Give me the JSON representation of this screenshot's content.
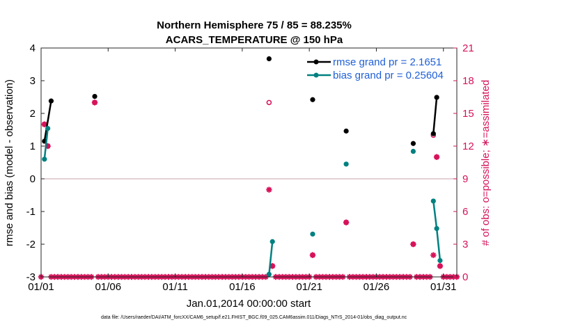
{
  "chart_data": {
    "type": "line",
    "title_line1": "Northern Hemisphere 75 / 85 = 88.235%",
    "title_line2": "ACARS_TEMPERATURE @ 150 hPa",
    "ylabel": "rmse and bias (model - observation)",
    "y2label": "# of obs: o=possible; ∗=assimilated",
    "xlabel": "Jan.01,2014 00:00:00 start",
    "footer": "data file: /Users/raeder/DAI/ATM_forcXX/CAM6_setup/f.e21.FHIST_BGC.f09_025.CAM6assim.011/Diags_NTrS_2014-01/obs_diag_output.nc",
    "xlim": [
      1,
      32
    ],
    "ylim": [
      -3,
      4
    ],
    "y2lim": [
      0,
      21
    ],
    "xticks": [
      1,
      6,
      11,
      16,
      21,
      26,
      31
    ],
    "xtick_labels": [
      "01/01",
      "01/06",
      "01/11",
      "01/16",
      "01/21",
      "01/26",
      "01/31"
    ],
    "yticks": [
      -3,
      -2,
      -1,
      0,
      1,
      2,
      3,
      4
    ],
    "ytick_labels": [
      "-3",
      "-2",
      "-1",
      "0",
      "1",
      "2",
      "3",
      "4"
    ],
    "y2ticks": [
      0,
      3,
      6,
      9,
      12,
      15,
      18,
      21
    ],
    "y2tick_labels": [
      "0",
      "3",
      "6",
      "9",
      "12",
      "15",
      "18",
      "21"
    ],
    "colors": {
      "rmse": "#000000",
      "bias": "#008080",
      "obs": "#d6135a",
      "legend_text": "#1f5fd6",
      "zero_line": "#c8a0a8"
    },
    "legend": [
      {
        "name": "rmse grand pr = 2.1651",
        "series": "rmse"
      },
      {
        "name": "bias grand pr = 0.25604",
        "series": "bias"
      }
    ],
    "series": [
      {
        "name": "rmse",
        "segments": [
          [
            [
              1.25,
              1.15
            ],
            [
              1.75,
              2.38
            ]
          ],
          [
            [
              5.0,
              2.52
            ]
          ],
          [
            [
              18.0,
              3.67
            ]
          ],
          [
            [
              21.25,
              2.42
            ]
          ],
          [
            [
              23.75,
              1.46
            ]
          ],
          [
            [
              28.75,
              1.08
            ]
          ],
          [
            [
              30.25,
              1.38
            ],
            [
              30.5,
              2.49
            ]
          ]
        ]
      },
      {
        "name": "bias",
        "segments": [
          [
            [
              1.25,
              0.6
            ],
            [
              1.5,
              1.54
            ]
          ],
          [
            [
              18.0,
              -2.92
            ],
            [
              18.25,
              -1.92
            ]
          ],
          [
            [
              21.25,
              -1.69
            ]
          ],
          [
            [
              23.75,
              0.45
            ]
          ],
          [
            [
              28.75,
              0.84
            ]
          ],
          [
            [
              30.25,
              -0.68
            ],
            [
              30.5,
              -1.52
            ],
            [
              30.75,
              -2.5
            ]
          ]
        ]
      }
    ],
    "obs_possible": [
      [
        1.25,
        14
      ],
      [
        1.5,
        12
      ],
      [
        5.0,
        16
      ],
      [
        18.0,
        16
      ],
      [
        18.25,
        1
      ],
      [
        21.25,
        2
      ],
      [
        23.75,
        5
      ],
      [
        28.75,
        3
      ],
      [
        30.25,
        13
      ],
      [
        30.5,
        11
      ],
      [
        30.75,
        1
      ]
    ],
    "obs_assimilated": [
      [
        1.25,
        14
      ],
      [
        1.5,
        12
      ],
      [
        5.0,
        16
      ],
      [
        18.0,
        8
      ],
      [
        18.25,
        1
      ],
      [
        21.25,
        2
      ],
      [
        23.75,
        5
      ],
      [
        28.75,
        3
      ],
      [
        30.25,
        2
      ],
      [
        30.5,
        11
      ],
      [
        30.75,
        1
      ]
    ],
    "obs_zero_x_start": 1.0,
    "obs_zero_x_end": 32.0,
    "obs_zero_x_step": 0.25
  }
}
